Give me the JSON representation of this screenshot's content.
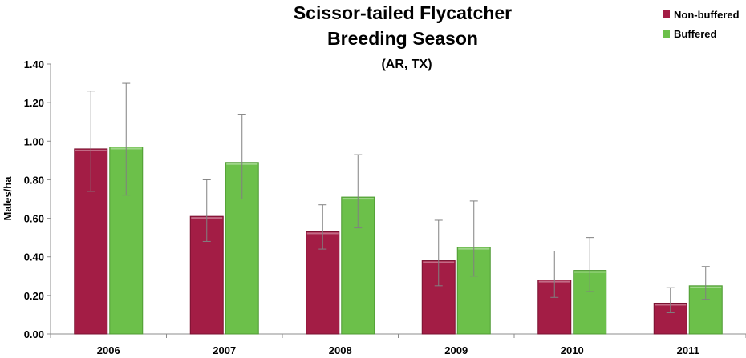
{
  "chart_data": {
    "type": "bar",
    "title": "Scissor-tailed Flycatcher",
    "subtitle": "Breeding Season",
    "subsubtitle": "(AR, TX)",
    "xlabel": "",
    "ylabel": "Males/ha",
    "ylim": [
      0,
      1.4
    ],
    "yticks": [
      "0.00",
      "0.20",
      "0.40",
      "0.60",
      "0.80",
      "1.00",
      "1.20",
      "1.40"
    ],
    "ytick_values": [
      0,
      0.2,
      0.4,
      0.6,
      0.8,
      1.0,
      1.2,
      1.4
    ],
    "categories": [
      "2006",
      "2007",
      "2008",
      "2009",
      "2010",
      "2011"
    ],
    "legend_position": "top-right",
    "grid": false,
    "series": [
      {
        "name": "Non-buffered",
        "color": "#a31d45",
        "values": [
          0.96,
          0.61,
          0.53,
          0.38,
          0.28,
          0.16
        ],
        "err_low": [
          0.74,
          0.48,
          0.44,
          0.25,
          0.19,
          0.11
        ],
        "err_high": [
          1.26,
          0.8,
          0.67,
          0.59,
          0.43,
          0.24
        ]
      },
      {
        "name": "Buffered",
        "color": "#6cc04a",
        "values": [
          0.97,
          0.89,
          0.71,
          0.45,
          0.33,
          0.25
        ],
        "err_low": [
          0.72,
          0.7,
          0.55,
          0.3,
          0.22,
          0.18
        ],
        "err_high": [
          1.3,
          1.14,
          0.93,
          0.69,
          0.5,
          0.35
        ]
      }
    ]
  }
}
